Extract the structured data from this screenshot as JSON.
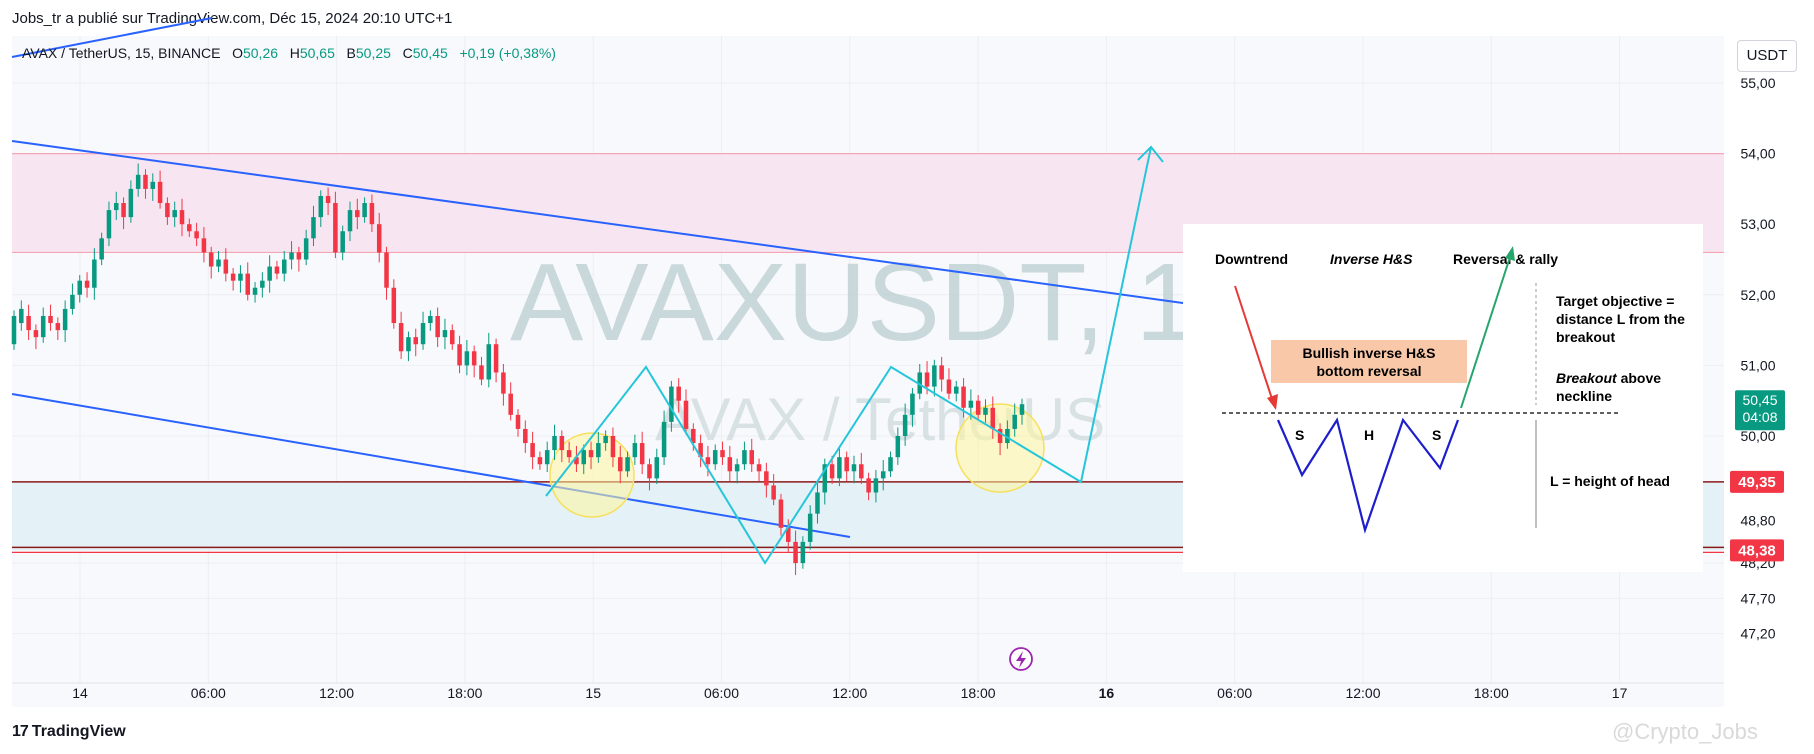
{
  "header": {
    "publisher_line": "Jobs_tr a publié sur TradingView.com, Déc 15, 2024 20:10 UTC+1"
  },
  "legend": {
    "symbol": "AVAX / TetherUS, 15, BINANCE",
    "o_label": "O",
    "o_value": "50,26",
    "h_label": "H",
    "h_value": "50,65",
    "b_label": "B",
    "b_value": "50,25",
    "c_label": "C",
    "c_value": "50,45",
    "change": "+0,19 (+0,38%)"
  },
  "currency_button": "USDT",
  "footer": {
    "logo_text": "TradingView",
    "credit": "@Crypto_Jobs"
  },
  "colors": {
    "up": "#089981",
    "down": "#f23645",
    "trendline": "#2962ff",
    "pattern": "#26c6da",
    "resistance_zone": "#f6e3ef",
    "support_zone": "#e3f0f5",
    "price_badge": "#089981",
    "level_badge": "#f23645"
  },
  "chart_data": {
    "type": "candlestick",
    "symbol": "AVAXUSDT",
    "timeframe": "15",
    "watermark_main": "AVAXUSDT, 15",
    "watermark_sub": "AVAX / TetherUS",
    "y_ticks": [
      "55,00",
      "54,00",
      "53,00",
      "52,00",
      "51,00",
      "50,00",
      "48,80",
      "48,20",
      "47,70",
      "47,20"
    ],
    "y_tick_values": [
      55.0,
      54.0,
      53.0,
      52.0,
      51.0,
      50.0,
      48.8,
      48.2,
      47.7,
      47.2
    ],
    "ylim": [
      46.9,
      55.4
    ],
    "x_ticks": [
      {
        "label": "14",
        "bold": false
      },
      {
        "label": "06:00",
        "bold": false
      },
      {
        "label": "12:00",
        "bold": false
      },
      {
        "label": "18:00",
        "bold": false
      },
      {
        "label": "15",
        "bold": false
      },
      {
        "label": "06:00",
        "bold": false
      },
      {
        "label": "12:00",
        "bold": false
      },
      {
        "label": "18:00",
        "bold": false
      },
      {
        "label": "16",
        "bold": true
      },
      {
        "label": "06:00",
        "bold": false
      },
      {
        "label": "12:00",
        "bold": false
      },
      {
        "label": "18:00",
        "bold": false
      },
      {
        "label": "17",
        "bold": false
      }
    ],
    "current_price": {
      "value": "50,45",
      "countdown": "04:08",
      "price": 50.45
    },
    "levels": [
      {
        "label": "49,35",
        "price": 49.35
      },
      {
        "label": "48,38",
        "price": 48.38
      }
    ],
    "resistance_zone": {
      "top": 54.0,
      "bottom": 52.6
    },
    "support_zone": {
      "top": 49.35,
      "bottom": 48.38
    },
    "candles": [
      [
        51.3,
        51.7
      ],
      [
        51.6,
        51.8
      ],
      [
        51.7,
        51.5
      ],
      [
        51.5,
        51.4
      ],
      [
        51.4,
        51.7
      ],
      [
        51.7,
        51.6
      ],
      [
        51.6,
        51.5
      ],
      [
        51.5,
        51.8
      ],
      [
        51.8,
        52.0
      ],
      [
        52.0,
        52.2
      ],
      [
        52.2,
        52.1
      ],
      [
        52.1,
        52.5
      ],
      [
        52.5,
        52.8
      ],
      [
        52.8,
        53.2
      ],
      [
        53.2,
        53.3
      ],
      [
        53.3,
        53.1
      ],
      [
        53.1,
        53.5
      ],
      [
        53.5,
        53.7
      ],
      [
        53.7,
        53.5
      ],
      [
        53.5,
        53.6
      ],
      [
        53.6,
        53.3
      ],
      [
        53.3,
        53.1
      ],
      [
        53.1,
        53.2
      ],
      [
        53.2,
        53.0
      ],
      [
        53.0,
        52.9
      ],
      [
        52.9,
        52.8
      ],
      [
        52.8,
        52.6
      ],
      [
        52.6,
        52.4
      ],
      [
        52.4,
        52.5
      ],
      [
        52.5,
        52.3
      ],
      [
        52.3,
        52.2
      ],
      [
        52.2,
        52.3
      ],
      [
        52.3,
        52.0
      ],
      [
        52.0,
        52.1
      ],
      [
        52.1,
        52.2
      ],
      [
        52.2,
        52.4
      ],
      [
        52.4,
        52.3
      ],
      [
        52.3,
        52.5
      ],
      [
        52.5,
        52.6
      ],
      [
        52.6,
        52.5
      ],
      [
        52.5,
        52.8
      ],
      [
        52.8,
        53.1
      ],
      [
        53.1,
        53.4
      ],
      [
        53.4,
        53.3
      ],
      [
        53.3,
        52.6
      ],
      [
        52.6,
        52.9
      ],
      [
        52.9,
        53.2
      ],
      [
        53.2,
        53.1
      ],
      [
        53.1,
        53.3
      ],
      [
        53.3,
        53.0
      ],
      [
        53.0,
        52.6
      ],
      [
        52.6,
        52.1
      ],
      [
        52.1,
        51.6
      ],
      [
        51.6,
        51.2
      ],
      [
        51.2,
        51.4
      ],
      [
        51.4,
        51.3
      ],
      [
        51.3,
        51.6
      ],
      [
        51.6,
        51.7
      ],
      [
        51.7,
        51.4
      ],
      [
        51.4,
        51.5
      ],
      [
        51.5,
        51.3
      ],
      [
        51.3,
        51.0
      ],
      [
        51.0,
        51.2
      ],
      [
        51.2,
        51.0
      ],
      [
        51.0,
        50.8
      ],
      [
        50.8,
        51.3
      ],
      [
        51.3,
        50.9
      ],
      [
        50.9,
        50.6
      ],
      [
        50.6,
        50.3
      ],
      [
        50.3,
        50.1
      ],
      [
        50.1,
        49.9
      ],
      [
        49.9,
        49.7
      ],
      [
        49.7,
        49.6
      ],
      [
        49.6,
        49.8
      ],
      [
        49.8,
        50.0
      ],
      [
        50.0,
        49.8
      ],
      [
        49.8,
        49.7
      ],
      [
        49.7,
        49.6
      ],
      [
        49.6,
        49.8
      ],
      [
        49.8,
        49.7
      ],
      [
        49.7,
        49.9
      ],
      [
        49.9,
        50.0
      ],
      [
        50.0,
        49.7
      ],
      [
        49.7,
        49.5
      ],
      [
        49.5,
        49.7
      ],
      [
        49.7,
        49.9
      ],
      [
        49.9,
        49.6
      ],
      [
        49.6,
        49.4
      ],
      [
        49.4,
        49.7
      ],
      [
        49.7,
        50.2
      ],
      [
        50.2,
        50.7
      ],
      [
        50.7,
        50.5
      ],
      [
        50.5,
        50.1
      ],
      [
        50.1,
        49.9
      ],
      [
        49.9,
        49.7
      ],
      [
        49.7,
        49.6
      ],
      [
        49.6,
        49.8
      ],
      [
        49.8,
        49.7
      ],
      [
        49.7,
        49.5
      ],
      [
        49.5,
        49.6
      ],
      [
        49.6,
        49.8
      ],
      [
        49.8,
        49.6
      ],
      [
        49.6,
        49.5
      ],
      [
        49.5,
        49.3
      ],
      [
        49.3,
        49.1
      ],
      [
        49.1,
        48.7
      ],
      [
        48.7,
        48.5
      ],
      [
        48.5,
        48.2
      ],
      [
        48.2,
        48.5
      ],
      [
        48.5,
        48.9
      ],
      [
        48.9,
        49.2
      ],
      [
        49.2,
        49.6
      ],
      [
        49.6,
        49.4
      ],
      [
        49.4,
        49.7
      ],
      [
        49.7,
        49.5
      ],
      [
        49.5,
        49.6
      ],
      [
        49.6,
        49.4
      ],
      [
        49.4,
        49.2
      ],
      [
        49.2,
        49.4
      ],
      [
        49.4,
        49.5
      ],
      [
        49.5,
        49.7
      ],
      [
        49.7,
        50.0
      ],
      [
        50.0,
        50.3
      ],
      [
        50.3,
        50.6
      ],
      [
        50.6,
        50.9
      ],
      [
        50.9,
        50.7
      ],
      [
        50.7,
        51.0
      ],
      [
        51.0,
        50.8
      ],
      [
        50.8,
        50.6
      ],
      [
        50.6,
        50.7
      ],
      [
        50.7,
        50.4
      ],
      [
        50.4,
        50.5
      ],
      [
        50.5,
        50.3
      ],
      [
        50.3,
        50.4
      ],
      [
        50.4,
        50.1
      ],
      [
        50.1,
        49.9
      ],
      [
        49.9,
        50.1
      ],
      [
        50.1,
        50.3
      ],
      [
        50.3,
        50.45
      ]
    ],
    "annotation_text": {
      "downtrend": "Downtrend",
      "inverse_hs": "Inverse H&S",
      "reversal": "Reversal & rally",
      "box_line1": "Bullish inverse H&S",
      "box_line2": "bottom reversal",
      "target_l1": "Target objective =",
      "target_l2": "distance L from the",
      "target_l3": "breakout",
      "breakout_word": "Breakout",
      "breakout_rest": " above",
      "breakout_l2": "neckline",
      "l_height": "L = height of head",
      "s1": "S",
      "h": "H",
      "s2": "S"
    }
  }
}
